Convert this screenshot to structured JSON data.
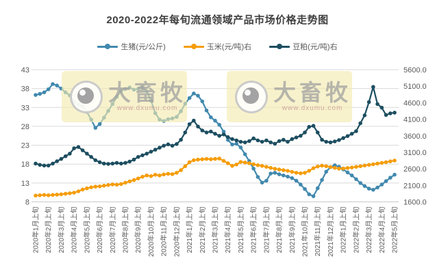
{
  "title": "2020-2022年每旬流通领域产品市场价格走势图",
  "legend": {
    "items": [
      {
        "label": "生猪(元/公斤)",
        "color": "#4189ae"
      },
      {
        "label": "玉米(元/吨)右",
        "color": "#f59d0a"
      },
      {
        "label": "豆粕(元/吨)右",
        "color": "#1d4e60"
      }
    ]
  },
  "watermark": {
    "brand": "大畜牧",
    "url": "www.dxumu.com"
  },
  "chart_data": {
    "type": "line",
    "x_unit": "旬 (three data points per month: 上旬/中旬/下旬)",
    "x_labels": [
      "2020年1月上旬",
      "2020年2月上旬",
      "2020年3月上旬",
      "2020年4月上旬",
      "2020年5月上旬",
      "2020年6月上旬",
      "2020年7月上旬",
      "2020年8月上旬",
      "2020年9月上旬",
      "2020年10月上旬",
      "2020年11月上旬",
      "2020年12月上旬",
      "2021年1月上旬",
      "2021年2月上旬",
      "2021年3月上旬",
      "2021年4月上旬",
      "2021年5月上旬",
      "2021年6月上旬",
      "2021年7月上旬",
      "2021年8月上旬",
      "2021年9月上旬",
      "2021年10月上旬",
      "2021年11月上旬",
      "2021年12月上旬",
      "2022年1月上旬",
      "2022年2月上旬",
      "2022年3月上旬",
      "2022年4月上旬",
      "2022年5月上旬"
    ],
    "left_axis": {
      "min": 8,
      "max": 43,
      "ticks": [
        8,
        13,
        18,
        23,
        28,
        33,
        38,
        43
      ],
      "color": "#595959"
    },
    "right_axis": {
      "min": 1600,
      "max": 5600,
      "ticks": [
        1600,
        2100,
        2600,
        3100,
        3600,
        4100,
        4600,
        5100,
        5600
      ],
      "decimals": 1,
      "color": "#595959"
    },
    "grid_color": "#d9d9d9",
    "series": [
      {
        "name": "生猪(元/公斤)",
        "axis": "left",
        "color": "#4189ae",
        "values": [
          36.3,
          36.6,
          37.0,
          37.8,
          39.2,
          38.8,
          38.0,
          37.0,
          36.2,
          34.5,
          33.8,
          33.3,
          31.8,
          29.8,
          27.6,
          28.6,
          30.3,
          32.1,
          33.9,
          35.8,
          37.4,
          37.9,
          38.3,
          37.7,
          37.9,
          38.3,
          37.3,
          34.8,
          31.5,
          29.8,
          29.4,
          29.9,
          30.1,
          30.5,
          32.0,
          34.0,
          35.5,
          36.7,
          36.1,
          34.6,
          32.2,
          30.4,
          29.5,
          28.4,
          26.6,
          24.4,
          23.2,
          23.4,
          22.4,
          20.6,
          18.8,
          16.8,
          14.6,
          13.1,
          13.6,
          15.5,
          15.7,
          15.3,
          15.0,
          14.7,
          14.3,
          13.6,
          12.6,
          11.4,
          10.0,
          9.5,
          11.6,
          13.8,
          16.0,
          17.2,
          17.7,
          17.3,
          16.6,
          15.8,
          15.0,
          14.0,
          13.0,
          12.2,
          11.5,
          11.2,
          11.8,
          12.6,
          13.5,
          14.4,
          15.2
        ]
      },
      {
        "name": "玉米(元/吨)右",
        "axis": "right",
        "color": "#f59d0a",
        "values": [
          1790,
          1800,
          1810,
          1800,
          1810,
          1820,
          1830,
          1845,
          1860,
          1880,
          1920,
          1975,
          2010,
          2040,
          2060,
          2070,
          2090,
          2110,
          2130,
          2120,
          2140,
          2180,
          2220,
          2260,
          2310,
          2360,
          2400,
          2380,
          2420,
          2400,
          2430,
          2450,
          2440,
          2480,
          2560,
          2680,
          2800,
          2860,
          2880,
          2890,
          2900,
          2890,
          2900,
          2910,
          2840,
          2770,
          2690,
          2730,
          2810,
          2790,
          2770,
          2740,
          2710,
          2690,
          2660,
          2630,
          2600,
          2580,
          2560,
          2540,
          2510,
          2480,
          2465,
          2480,
          2540,
          2620,
          2670,
          2695,
          2680,
          2655,
          2630,
          2605,
          2610,
          2625,
          2640,
          2660,
          2680,
          2700,
          2720,
          2740,
          2760,
          2780,
          2800,
          2825,
          2850
        ]
      },
      {
        "name": "豆粕(元/吨)右",
        "axis": "right",
        "color": "#1d4e60",
        "values": [
          2760,
          2720,
          2700,
          2700,
          2760,
          2830,
          2900,
          2980,
          3060,
          3220,
          3260,
          3160,
          3060,
          2960,
          2860,
          2800,
          2760,
          2750,
          2760,
          2780,
          2760,
          2780,
          2820,
          2880,
          2960,
          3010,
          3060,
          3120,
          3180,
          3240,
          3300,
          3340,
          3300,
          3350,
          3480,
          3700,
          3950,
          4060,
          3880,
          3760,
          3700,
          3730,
          3660,
          3600,
          3640,
          3560,
          3500,
          3460,
          3420,
          3400,
          3440,
          3520,
          3460,
          3420,
          3460,
          3400,
          3360,
          3440,
          3480,
          3420,
          3500,
          3550,
          3600,
          3700,
          3870,
          3900,
          3700,
          3480,
          3420,
          3400,
          3430,
          3470,
          3530,
          3590,
          3660,
          3740,
          3980,
          4220,
          4620,
          5080,
          4560,
          4450,
          4230,
          4280,
          4300
        ]
      }
    ]
  }
}
